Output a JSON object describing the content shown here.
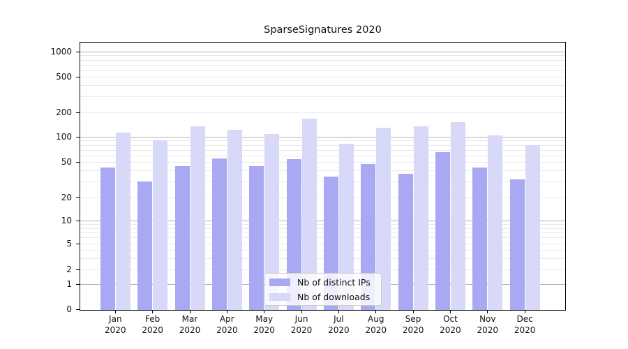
{
  "chart_data": {
    "type": "bar",
    "title": "SparseSignatures 2020",
    "categories": [
      "Jan 2020",
      "Feb 2020",
      "Mar 2020",
      "Apr 2020",
      "May 2020",
      "Jun 2020",
      "Jul 2020",
      "Aug 2020",
      "Sep 2020",
      "Oct 2020",
      "Nov 2020",
      "Dec 2020"
    ],
    "series": [
      {
        "name": "Nb of distinct IPs",
        "color": "#a8a8f3",
        "values": [
          43,
          30,
          45,
          55,
          45,
          54,
          34,
          47,
          37,
          66,
          43,
          32
        ]
      },
      {
        "name": "Nb of downloads",
        "color": "#d8d8f8",
        "values": [
          113,
          90,
          135,
          123,
          108,
          167,
          83,
          130,
          134,
          152,
          105,
          79
        ]
      }
    ],
    "xlabel": "",
    "ylabel": "",
    "y_axis": {
      "scale": "symlog",
      "tick_labels": [
        "1000",
        "500",
        "200",
        "100",
        "50",
        "20",
        "10",
        "5",
        "2",
        "1",
        "0"
      ],
      "ylim": [
        0,
        1300
      ]
    },
    "grid": {
      "major": true,
      "minor": true
    },
    "legend": {
      "position": "lower center",
      "items": [
        "Nb of distinct IPs",
        "Nb of downloads"
      ]
    }
  },
  "colors": {
    "bar_distinct_ips": "#a8a8f3",
    "bar_downloads": "#d8d8f8",
    "grid_major": "#b0b0b0",
    "grid_minor": "#eaeaea",
    "spine": "#000000",
    "text": "#111111",
    "legend_bg": "rgba(255,255,255,0.8)",
    "legend_border": "#cccccc"
  }
}
